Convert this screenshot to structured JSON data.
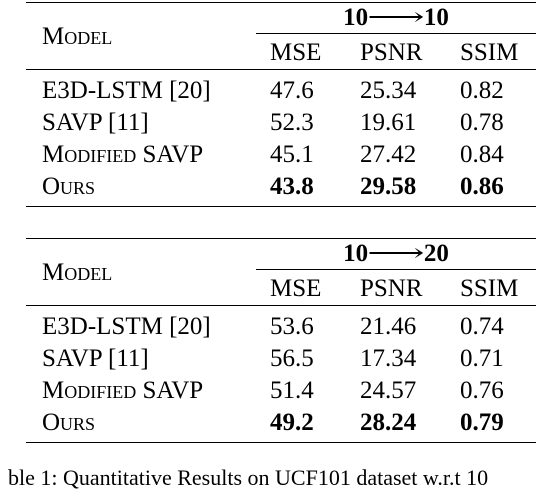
{
  "tables": [
    {
      "model_header": "Model",
      "setting": {
        "from": "10",
        "arrow": "⟶",
        "to": "10"
      },
      "metrics": [
        "MSE",
        "PSNR",
        "SSIM"
      ],
      "rows": [
        {
          "model": "E3D-LSTM [20]",
          "mse": "47.6",
          "psnr": "25.34",
          "ssim": "0.82"
        },
        {
          "model": "SAVP [11]",
          "mse": "52.3",
          "psnr": "19.61",
          "ssim": "0.78"
        },
        {
          "model": "Modified SAVP",
          "mse": "45.1",
          "psnr": "27.42",
          "ssim": "0.84"
        },
        {
          "model": "Ours",
          "mse": "43.8",
          "psnr": "29.58",
          "ssim": "0.86"
        }
      ]
    },
    {
      "model_header": "Model",
      "setting": {
        "from": "10",
        "arrow": "⟶",
        "to": "20"
      },
      "metrics": [
        "MSE",
        "PSNR",
        "SSIM"
      ],
      "rows": [
        {
          "model": "E3D-LSTM [20]",
          "mse": "53.6",
          "psnr": "21.46",
          "ssim": "0.74"
        },
        {
          "model": "SAVP [11]",
          "mse": "56.5",
          "psnr": "17.34",
          "ssim": "0.71"
        },
        {
          "model": "Modified SAVP",
          "mse": "51.4",
          "psnr": "24.57",
          "ssim": "0.76"
        },
        {
          "model": "Ours",
          "mse": "49.2",
          "psnr": "28.24",
          "ssim": "0.79"
        }
      ]
    }
  ],
  "chart_data": [
    {
      "type": "table",
      "columns": [
        "Model",
        "MSE",
        "PSNR",
        "SSIM"
      ],
      "setting": "10 ⟶ 10",
      "rows": [
        [
          "E3D-LSTM [20]",
          47.6,
          25.34,
          0.82
        ],
        [
          "SAVP [11]",
          52.3,
          19.61,
          0.78
        ],
        [
          "Modified SAVP",
          45.1,
          27.42,
          0.84
        ],
        [
          "Ours",
          43.8,
          29.58,
          0.86
        ]
      ]
    },
    {
      "type": "table",
      "columns": [
        "Model",
        "MSE",
        "PSNR",
        "SSIM"
      ],
      "setting": "10 ⟶ 20",
      "rows": [
        [
          "E3D-LSTM [20]",
          53.6,
          21.46,
          0.74
        ],
        [
          "SAVP [11]",
          56.5,
          17.34,
          0.71
        ],
        [
          "Modified SAVP",
          51.4,
          24.57,
          0.76
        ],
        [
          "Ours",
          49.2,
          28.24,
          0.79
        ]
      ]
    }
  ],
  "caption": "ble 1: Quantitative Results on UCF101 dataset w.r.t 10"
}
